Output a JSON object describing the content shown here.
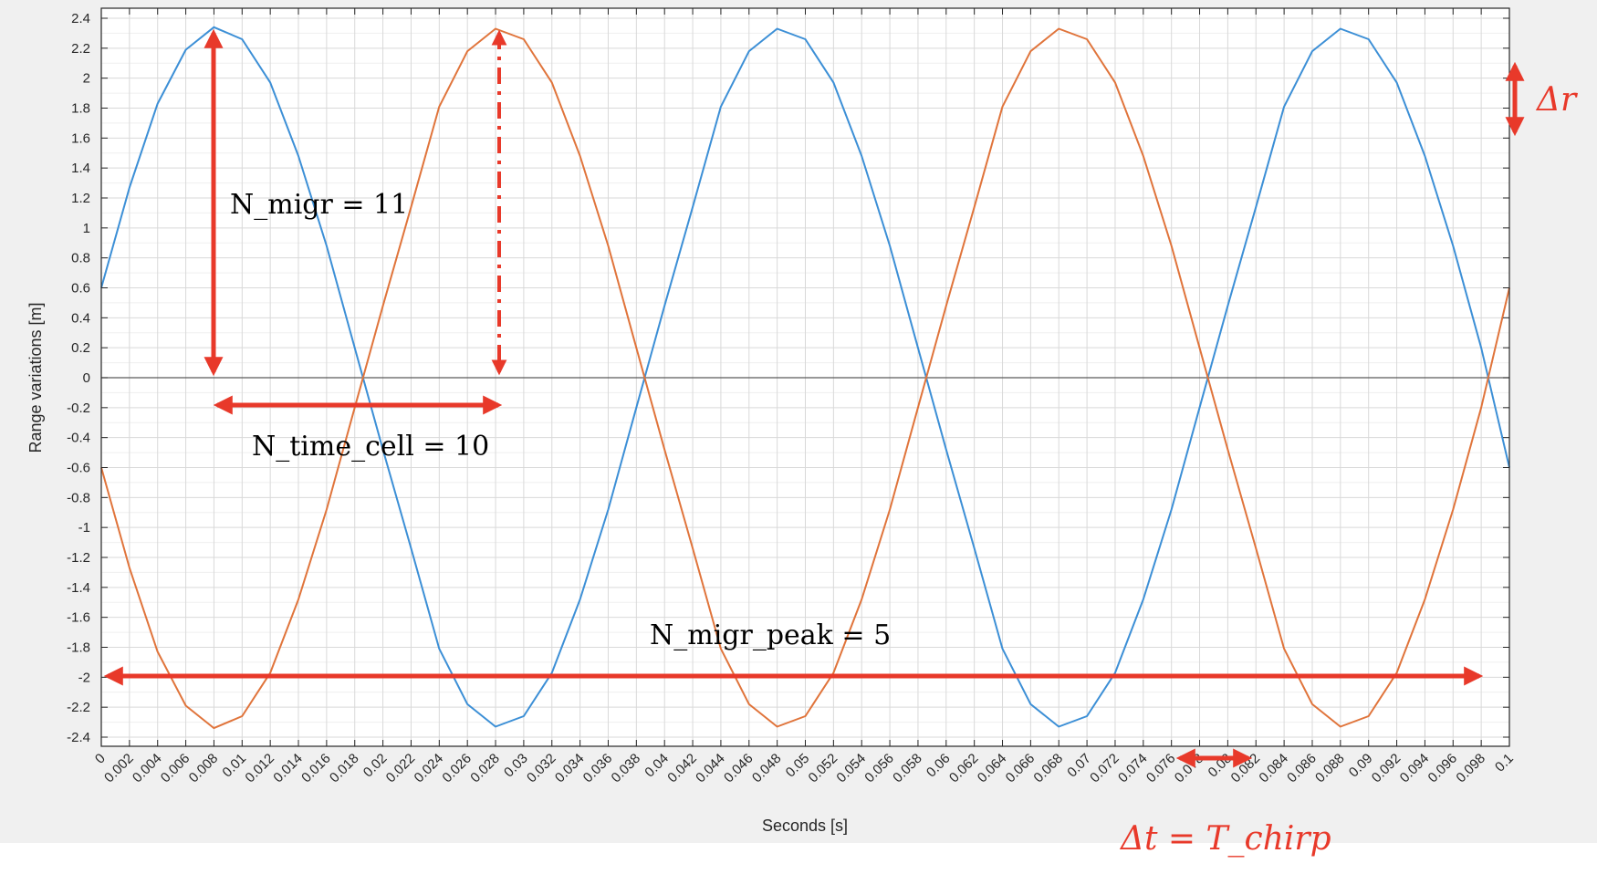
{
  "chart_data": {
    "type": "line",
    "xlabel": "Seconds [s]",
    "ylabel": "Range variations [m]",
    "xlim": [
      0,
      0.1
    ],
    "ylim": [
      -2.4,
      2.4
    ],
    "grid": "on (major and minor)",
    "x_ticks": [
      "0",
      "0.002",
      "0.004",
      "0.006",
      "0.008",
      "0.01",
      "0.012",
      "0.014",
      "0.016",
      "0.018",
      "0.02",
      "0.022",
      "0.024",
      "0.026",
      "0.028",
      "0.03",
      "0.032",
      "0.034",
      "0.036",
      "0.038",
      "0.04",
      "0.042",
      "0.044",
      "0.046",
      "0.048",
      "0.05",
      "0.052",
      "0.054",
      "0.056",
      "0.058",
      "0.06",
      "0.062",
      "0.064",
      "0.066",
      "0.068",
      "0.07",
      "0.072",
      "0.074",
      "0.076",
      "0.078",
      "0.08",
      "0.082",
      "0.084",
      "0.086",
      "0.088",
      "0.09",
      "0.092",
      "0.094",
      "0.096",
      "0.098",
      "0.1"
    ],
    "y_ticks": [
      "2.4",
      "2.2",
      "2",
      "1.8",
      "1.6",
      "1.4",
      "1.2",
      "1",
      "0.8",
      "0.6",
      "0.4",
      "0.2",
      "0",
      "-0.2",
      "-0.4",
      "-0.6",
      "-0.8",
      "-1",
      "-1.2",
      "-1.4",
      "-1.6",
      "-1.8",
      "-2",
      "-2.2",
      "-2.4"
    ],
    "series": [
      {
        "color": "#3c8fd6",
        "x": [
          0,
          0.002,
          0.004,
          0.006,
          0.008,
          0.01,
          0.012,
          0.014,
          0.016,
          0.018,
          0.02,
          0.022,
          0.024,
          0.026,
          0.028,
          0.03,
          0.032,
          0.034,
          0.036,
          0.038,
          0.04,
          0.042,
          0.044,
          0.046,
          0.048,
          0.05,
          0.052,
          0.054,
          0.056,
          0.058,
          0.06,
          0.062,
          0.064,
          0.066,
          0.068,
          0.07,
          0.072,
          0.074,
          0.076,
          0.078,
          0.08,
          0.082,
          0.084,
          0.086,
          0.088,
          0.09,
          0.092,
          0.094,
          0.096,
          0.098,
          0.1
        ],
        "y": [
          0.6,
          1.27,
          1.83,
          2.19,
          2.34,
          2.26,
          1.97,
          1.48,
          0.88,
          0.2,
          -0.48,
          -1.14,
          -1.81,
          -2.18,
          -2.33,
          -2.26,
          -1.97,
          -1.48,
          -0.88,
          -0.2,
          0.48,
          1.14,
          1.81,
          2.18,
          2.33,
          2.26,
          1.97,
          1.48,
          0.88,
          0.2,
          -0.48,
          -1.14,
          -1.81,
          -2.18,
          -2.33,
          -2.26,
          -1.97,
          -1.48,
          -0.88,
          -0.2,
          0.48,
          1.14,
          1.81,
          2.18,
          2.33,
          2.26,
          1.97,
          1.48,
          0.88,
          0.2,
          -0.6
        ]
      },
      {
        "color": "#e0743b",
        "x": [
          0,
          0.002,
          0.004,
          0.006,
          0.008,
          0.01,
          0.012,
          0.014,
          0.016,
          0.018,
          0.02,
          0.022,
          0.024,
          0.026,
          0.028,
          0.03,
          0.032,
          0.034,
          0.036,
          0.038,
          0.04,
          0.042,
          0.044,
          0.046,
          0.048,
          0.05,
          0.052,
          0.054,
          0.056,
          0.058,
          0.06,
          0.062,
          0.064,
          0.066,
          0.068,
          0.07,
          0.072,
          0.074,
          0.076,
          0.078,
          0.08,
          0.082,
          0.084,
          0.086,
          0.088,
          0.09,
          0.092,
          0.094,
          0.096,
          0.098,
          0.1
        ],
        "y": [
          -0.6,
          -1.27,
          -1.83,
          -2.19,
          -2.34,
          -2.26,
          -1.97,
          -1.48,
          -0.88,
          -0.2,
          0.48,
          1.14,
          1.81,
          2.18,
          2.33,
          2.26,
          1.97,
          1.48,
          0.88,
          0.2,
          -0.48,
          -1.14,
          -1.81,
          -2.18,
          -2.33,
          -2.26,
          -1.97,
          -1.48,
          -0.88,
          -0.2,
          0.48,
          1.14,
          1.81,
          2.18,
          2.33,
          2.26,
          1.97,
          1.48,
          0.88,
          0.2,
          -0.48,
          -1.14,
          -1.81,
          -2.18,
          -2.33,
          -2.26,
          -1.97,
          -1.48,
          -0.88,
          -0.2,
          0.6
        ]
      }
    ],
    "annotations": {
      "n_migr": "N_migr = 11",
      "n_time_cell": "N_time_cell = 10",
      "n_migr_peak": "N_migr_peak = 5",
      "delta_r": "Δr",
      "delta_t": "Δt = T_chirp"
    },
    "annotation_color": "#e8392a"
  }
}
